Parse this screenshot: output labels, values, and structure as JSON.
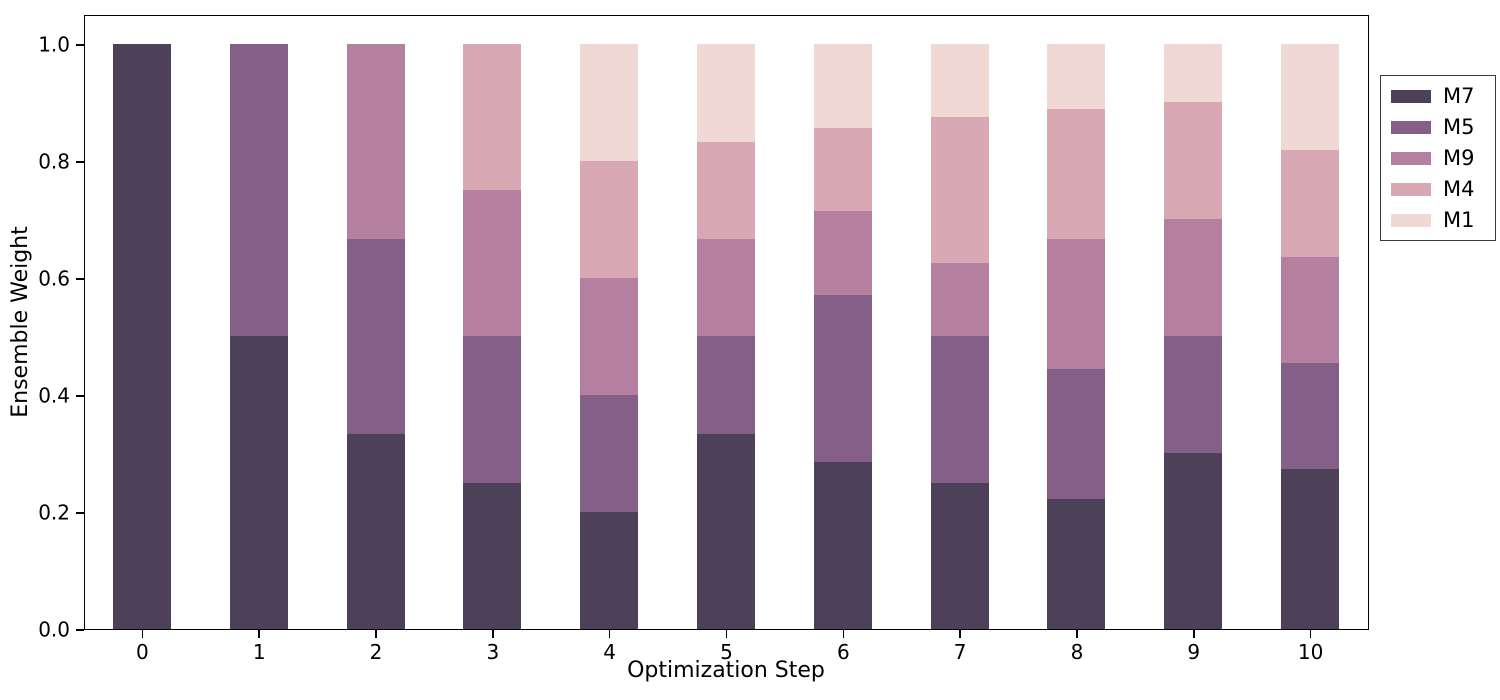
{
  "chart_data": {
    "type": "bar",
    "stacked": true,
    "title": "",
    "xlabel": "Optimization Step",
    "ylabel": "Ensemble Weight",
    "categories": [
      "0",
      "1",
      "2",
      "3",
      "4",
      "5",
      "6",
      "7",
      "8",
      "9",
      "10"
    ],
    "series": [
      {
        "name": "M7",
        "color": "#4d4059",
        "values": [
          1.0,
          0.5,
          0.3333,
          0.25,
          0.2,
          0.3333,
          0.2857,
          0.25,
          0.2222,
          0.3,
          0.2727
        ]
      },
      {
        "name": "M5",
        "color": "#846089",
        "values": [
          0,
          0.5,
          0.3333,
          0.25,
          0.2,
          0.1667,
          0.2857,
          0.25,
          0.2222,
          0.2,
          0.1818
        ]
      },
      {
        "name": "M9",
        "color": "#b57fa0",
        "values": [
          0,
          0,
          0.3334,
          0.25,
          0.2,
          0.1667,
          0.1429,
          0.125,
          0.2222,
          0.2,
          0.1819
        ]
      },
      {
        "name": "M4",
        "color": "#d8a8b4",
        "values": [
          0,
          0,
          0,
          0.25,
          0.2,
          0.1666,
          0.1428,
          0.25,
          0.2223,
          0.2,
          0.1818
        ]
      },
      {
        "name": "M1",
        "color": "#f0d9d4",
        "values": [
          0,
          0,
          0,
          0,
          0.2,
          0.1667,
          0.1429,
          0.125,
          0.1111,
          0.1,
          0.1818
        ]
      }
    ],
    "y_ticks": [
      "0.0",
      "0.2",
      "0.4",
      "0.6",
      "0.8",
      "1.0"
    ],
    "ylim": [
      0.0,
      1.0513
    ],
    "grid": false,
    "legend": {
      "position": "outside-upper-right",
      "entries": [
        "M7",
        "M5",
        "M9",
        "M4",
        "M1"
      ]
    }
  }
}
